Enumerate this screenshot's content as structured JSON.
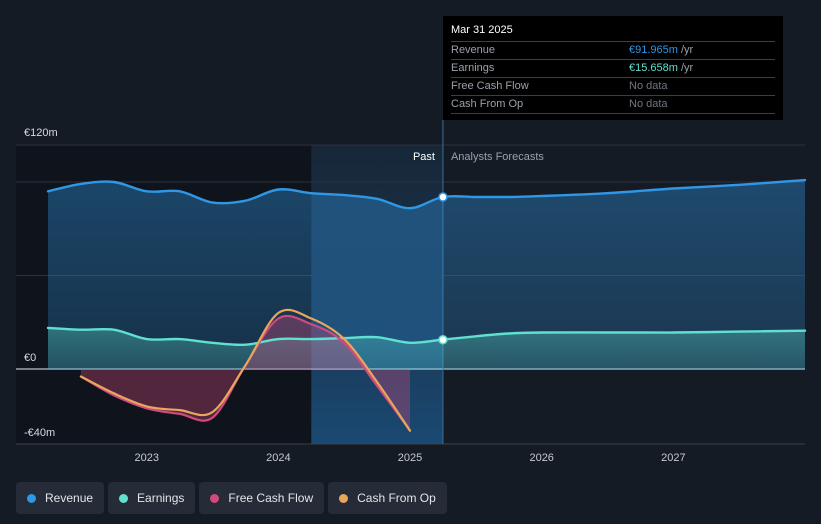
{
  "colors": {
    "revenue": "#2f97e5",
    "earnings": "#60e0cf",
    "free_cash_flow": "#d04a7d",
    "cash_from_op": "#e9a65d"
  },
  "tooltip": {
    "date": "Mar 31 2025",
    "rows": [
      {
        "label": "Revenue",
        "value": "€91.965m",
        "unit": " /yr"
      },
      {
        "label": "Earnings",
        "value": "€15.658m",
        "unit": " /yr"
      },
      {
        "label": "Free Cash Flow",
        "value": "No data",
        "unit": ""
      },
      {
        "label": "Cash From Op",
        "value": "No data",
        "unit": ""
      }
    ]
  },
  "legend": [
    {
      "label": "Revenue",
      "key": "revenue"
    },
    {
      "label": "Earnings",
      "key": "earnings"
    },
    {
      "label": "Free Cash Flow",
      "key": "free_cash_flow"
    },
    {
      "label": "Cash From Op",
      "key": "cash_from_op"
    }
  ],
  "chart_data": {
    "type": "line",
    "y_unit": "€m",
    "ylim": [
      -40,
      120
    ],
    "y_tick_labels": [
      {
        "value": 120,
        "label": "€120m"
      },
      {
        "value": 0,
        "label": "€0"
      },
      {
        "value": -40,
        "label": "-€40m"
      }
    ],
    "x_tick_labels": [
      "2023",
      "2024",
      "2025",
      "2026",
      "2027"
    ],
    "xlim": [
      2022.25,
      2028.0
    ],
    "past_label": "Past",
    "forecast_label": "Analysts Forecasts",
    "divider_x": 2025.25,
    "highlight_start_x": 2024.25,
    "series": [
      {
        "name": "Revenue",
        "key": "revenue",
        "points": [
          [
            2022.25,
            95
          ],
          [
            2022.5,
            99
          ],
          [
            2022.75,
            100
          ],
          [
            2023.0,
            95
          ],
          [
            2023.25,
            95
          ],
          [
            2023.5,
            89
          ],
          [
            2023.75,
            90
          ],
          [
            2024.0,
            96
          ],
          [
            2024.25,
            94
          ],
          [
            2024.5,
            93
          ],
          [
            2024.75,
            91
          ],
          [
            2025.0,
            86
          ],
          [
            2025.25,
            92
          ],
          [
            2025.5,
            92
          ],
          [
            2025.75,
            92
          ],
          [
            2026.0,
            92.5
          ],
          [
            2026.5,
            94
          ],
          [
            2027.0,
            96.5
          ],
          [
            2027.5,
            98.5
          ],
          [
            2028.0,
            101
          ]
        ]
      },
      {
        "name": "Earnings",
        "key": "earnings",
        "points": [
          [
            2022.25,
            22
          ],
          [
            2022.5,
            21
          ],
          [
            2022.75,
            21
          ],
          [
            2023.0,
            16
          ],
          [
            2023.25,
            16
          ],
          [
            2023.5,
            14
          ],
          [
            2023.75,
            13
          ],
          [
            2024.0,
            16
          ],
          [
            2024.25,
            16
          ],
          [
            2024.5,
            16.5
          ],
          [
            2024.75,
            17
          ],
          [
            2025.0,
            14
          ],
          [
            2025.25,
            15.7
          ],
          [
            2025.5,
            17.5
          ],
          [
            2025.75,
            19
          ],
          [
            2026.0,
            19.5
          ],
          [
            2026.5,
            19.5
          ],
          [
            2027.0,
            19.5
          ],
          [
            2027.5,
            20
          ],
          [
            2028.0,
            20.5
          ]
        ]
      },
      {
        "name": "Free Cash Flow",
        "key": "free_cash_flow",
        "points": [
          [
            2022.5,
            -4
          ],
          [
            2022.75,
            -14
          ],
          [
            2023.0,
            -21
          ],
          [
            2023.25,
            -24
          ],
          [
            2023.5,
            -26
          ],
          [
            2023.75,
            2
          ],
          [
            2024.0,
            27
          ],
          [
            2024.25,
            24
          ],
          [
            2024.5,
            14
          ],
          [
            2024.75,
            -9
          ],
          [
            2025.0,
            -33
          ]
        ]
      },
      {
        "name": "Cash From Op",
        "key": "cash_from_op",
        "points": [
          [
            2022.5,
            -4
          ],
          [
            2022.75,
            -13
          ],
          [
            2023.0,
            -20
          ],
          [
            2023.25,
            -22
          ],
          [
            2023.5,
            -23
          ],
          [
            2023.75,
            2
          ],
          [
            2024.0,
            30
          ],
          [
            2024.25,
            27
          ],
          [
            2024.5,
            16
          ],
          [
            2024.75,
            -7
          ],
          [
            2025.0,
            -33
          ]
        ]
      }
    ],
    "markers": [
      {
        "series": "revenue",
        "x": 2025.25,
        "y": 91.965
      },
      {
        "series": "earnings",
        "x": 2025.25,
        "y": 15.658
      }
    ],
    "legend_position": "bottom-left",
    "grid": true
  }
}
